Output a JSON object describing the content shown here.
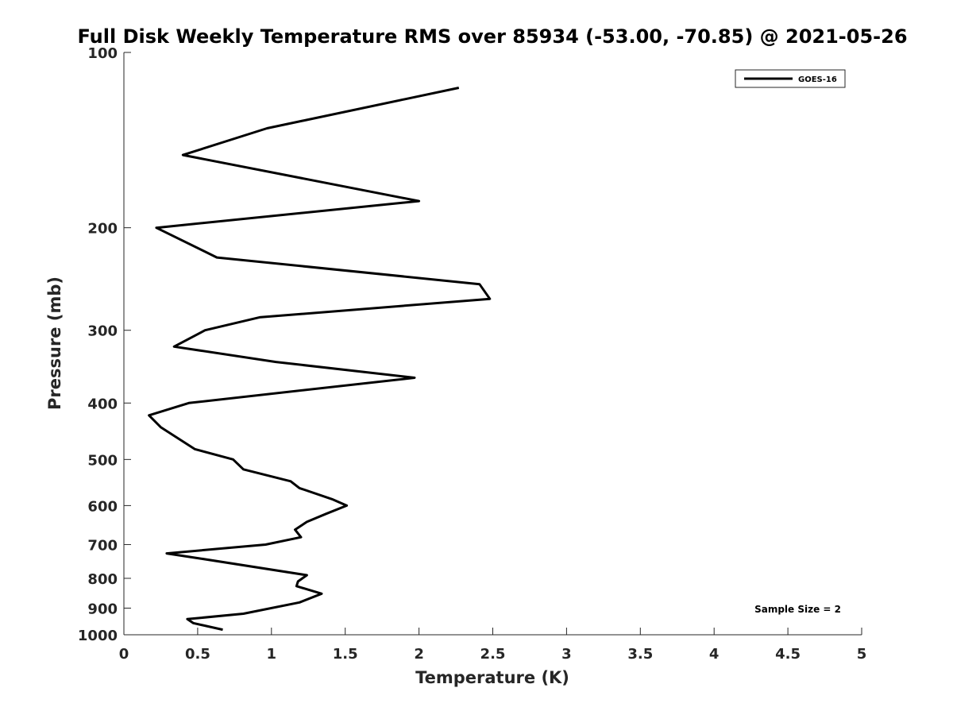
{
  "chart_data": {
    "type": "line",
    "title": "Full Disk Weekly Temperature RMS over 85934 (-53.00, -70.85) @ 2021-05-26",
    "xlabel": "Temperature (K)",
    "ylabel": "Pressure (mb)",
    "xlim": [
      0,
      5
    ],
    "ylim": [
      1000,
      100
    ],
    "y_scale": "log",
    "x_ticks": [
      0,
      0.5,
      1,
      1.5,
      2,
      2.5,
      3,
      3.5,
      4,
      4.5,
      5
    ],
    "x_tick_labels": [
      "0",
      "0.5",
      "1",
      "1.5",
      "2",
      "2.5",
      "3",
      "3.5",
      "4",
      "4.5",
      "5"
    ],
    "y_ticks": [
      100,
      200,
      300,
      400,
      500,
      600,
      700,
      800,
      900,
      1000
    ],
    "y_tick_labels": [
      "100",
      "200",
      "300",
      "400",
      "500",
      "600",
      "700",
      "800",
      "900",
      "1000"
    ],
    "grid": false,
    "legend_position": "top-right",
    "series": [
      {
        "name": "GOES-16",
        "color": "#000000",
        "points": [
          {
            "x": 2.27,
            "p": 115
          },
          {
            "x": 0.97,
            "p": 135
          },
          {
            "x": 0.4,
            "p": 150
          },
          {
            "x": 2.0,
            "p": 180
          },
          {
            "x": 0.22,
            "p": 200
          },
          {
            "x": 0.63,
            "p": 225
          },
          {
            "x": 2.41,
            "p": 250
          },
          {
            "x": 2.48,
            "p": 265
          },
          {
            "x": 0.92,
            "p": 285
          },
          {
            "x": 0.55,
            "p": 300
          },
          {
            "x": 0.34,
            "p": 320
          },
          {
            "x": 1.03,
            "p": 340
          },
          {
            "x": 1.97,
            "p": 362
          },
          {
            "x": 0.44,
            "p": 400
          },
          {
            "x": 0.17,
            "p": 420
          },
          {
            "x": 0.25,
            "p": 440
          },
          {
            "x": 0.48,
            "p": 480
          },
          {
            "x": 0.74,
            "p": 500
          },
          {
            "x": 0.81,
            "p": 520
          },
          {
            "x": 1.13,
            "p": 545
          },
          {
            "x": 1.19,
            "p": 560
          },
          {
            "x": 1.41,
            "p": 585
          },
          {
            "x": 1.51,
            "p": 600
          },
          {
            "x": 1.37,
            "p": 620
          },
          {
            "x": 1.24,
            "p": 640
          },
          {
            "x": 1.16,
            "p": 660
          },
          {
            "x": 1.2,
            "p": 680
          },
          {
            "x": 0.96,
            "p": 700
          },
          {
            "x": 0.29,
            "p": 725
          },
          {
            "x": 0.52,
            "p": 740
          },
          {
            "x": 1.24,
            "p": 790
          },
          {
            "x": 1.18,
            "p": 810
          },
          {
            "x": 1.17,
            "p": 825
          },
          {
            "x": 1.34,
            "p": 850
          },
          {
            "x": 1.19,
            "p": 880
          },
          {
            "x": 0.81,
            "p": 920
          },
          {
            "x": 0.43,
            "p": 940
          },
          {
            "x": 0.47,
            "p": 955
          },
          {
            "x": 0.67,
            "p": 980
          }
        ]
      }
    ],
    "annotation": "Sample Size = 2"
  }
}
